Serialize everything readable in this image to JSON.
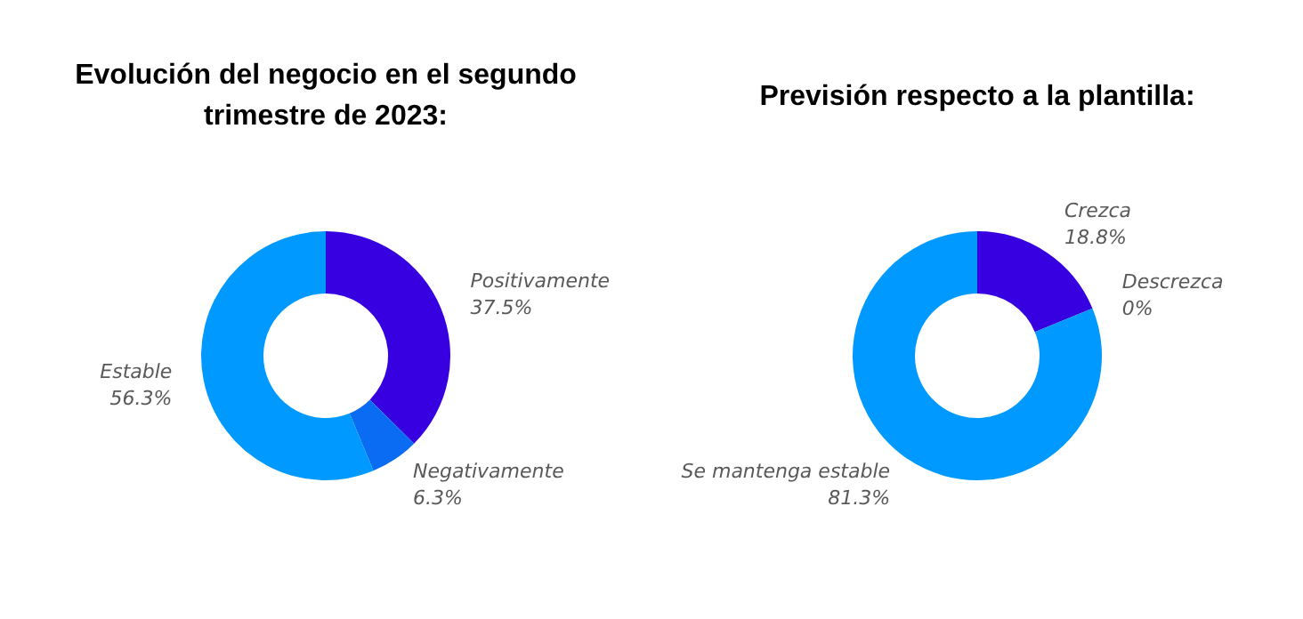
{
  "chart_data": [
    {
      "type": "donut",
      "title": "Evolución del negocio en el segundo trimestre de 2023:",
      "categories": [
        "Positivamente",
        "Negativamente",
        "Estable"
      ],
      "values": [
        37.5,
        6.3,
        56.3
      ],
      "value_labels": [
        "37.5%",
        "6.3%",
        "56.3%"
      ],
      "colors": [
        "#3700e0",
        "#0a6cf2",
        "#0099ff"
      ],
      "legend": false
    },
    {
      "type": "donut",
      "title": "Previsión respecto a la plantilla:",
      "categories": [
        "Crezca",
        "Descrezca",
        "Se mantenga estable"
      ],
      "values": [
        18.8,
        0,
        81.3
      ],
      "value_labels": [
        "18.8%",
        "0%",
        "81.3%"
      ],
      "colors": [
        "#3700e0",
        "#0a6cf2",
        "#0099ff"
      ],
      "legend": false
    }
  ]
}
